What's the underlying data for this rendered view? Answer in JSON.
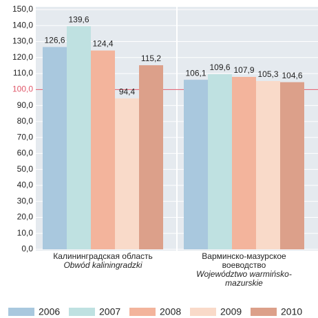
{
  "chart_data": {
    "type": "bar",
    "categories": [
      "Калининградская область",
      "Варминско-мазурское воеводство"
    ],
    "categories_pl": [
      "Obwód kaliningradzki",
      "Województwo warmińsko-mazurskie"
    ],
    "series": [
      {
        "name": "2006",
        "color": "#a9c8de",
        "values": [
          126.6,
          106.1
        ],
        "value_labels": [
          "126,6",
          "106,1"
        ]
      },
      {
        "name": "2007",
        "color": "#bfe1e1",
        "values": [
          139.6,
          109.6
        ],
        "value_labels": [
          "139,6",
          "109,6"
        ]
      },
      {
        "name": "2008",
        "color": "#f3b49c",
        "values": [
          124.4,
          107.9
        ],
        "value_labels": [
          "124,4",
          "107,9"
        ]
      },
      {
        "name": "2009",
        "color": "#f9dac9",
        "values": [
          94.4,
          105.3
        ],
        "value_labels": [
          "94,4",
          "105,3"
        ]
      },
      {
        "name": "2010",
        "color": "#dca08a",
        "values": [
          115.2,
          104.6
        ],
        "value_labels": [
          "115,2",
          "104,6"
        ]
      }
    ],
    "ylim": [
      0,
      150
    ],
    "yticks": [
      {
        "value": 0,
        "label": "0,0"
      },
      {
        "value": 10,
        "label": "10,0"
      },
      {
        "value": 20,
        "label": "20,0"
      },
      {
        "value": 30,
        "label": "30,0"
      },
      {
        "value": 40,
        "label": "40,0"
      },
      {
        "value": 50,
        "label": "50,0"
      },
      {
        "value": 60,
        "label": "60,0"
      },
      {
        "value": 70,
        "label": "70,0"
      },
      {
        "value": 80,
        "label": "80,0"
      },
      {
        "value": 90,
        "label": "90,0"
      },
      {
        "value": 100,
        "label": "100,0"
      },
      {
        "value": 110,
        "label": "110,0"
      },
      {
        "value": 120,
        "label": "120,0"
      },
      {
        "value": 130,
        "label": "130,0"
      },
      {
        "value": 140,
        "label": "140,0"
      },
      {
        "value": 150,
        "label": "150,0"
      }
    ],
    "grid": true,
    "reference_line": {
      "value": 100,
      "color": "#e0586a"
    },
    "legend": "bottom"
  }
}
